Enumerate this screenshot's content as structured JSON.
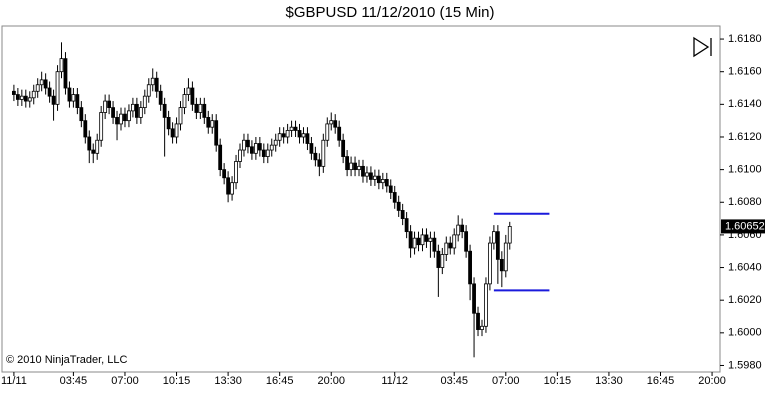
{
  "chart_data": {
    "type": "candlestick",
    "title": "$GBPUSD  11/12/2010 (15 Min)",
    "copyright": "© 2010 NinjaTrader, LLC",
    "x": [
      0,
      0.25,
      0.5,
      0.75,
      1,
      1.25,
      1.5,
      1.75,
      2,
      2.25,
      2.5,
      2.75,
      3,
      3.25,
      3.5,
      3.75,
      4,
      4.25,
      4.5,
      4.75,
      5,
      5.25,
      5.5,
      5.75,
      6,
      6.25,
      6.5,
      6.75,
      7,
      7.25,
      7.5,
      7.75,
      8,
      8.25,
      8.5,
      8.75,
      9,
      9.25,
      9.5,
      9.75,
      10,
      10.25,
      10.5,
      10.75,
      11,
      11.25,
      11.5,
      11.75,
      12,
      12.25,
      12.5,
      12.75,
      13,
      13.25,
      13.5,
      13.75,
      14,
      14.25,
      14.5,
      14.75,
      15,
      15.25,
      15.5,
      15.75,
      16,
      16.25,
      16.5,
      16.75,
      17,
      17.25,
      17.5,
      17.75,
      18,
      18.25,
      18.5,
      18.75,
      19,
      19.25,
      19.5,
      19.75,
      20,
      20.25,
      20.5,
      20.75,
      21,
      21.25,
      21.5,
      21.75,
      22,
      22.25,
      22.5,
      22.75,
      23,
      23.25,
      23.5,
      23.75,
      24,
      24.25,
      24.5,
      24.75,
      25,
      25.25,
      25.5,
      25.75,
      26,
      26.25,
      26.5,
      26.75,
      27,
      27.25,
      27.5,
      27.75,
      28,
      28.25,
      28.5,
      28.75,
      29,
      29.25,
      29.5,
      29.75,
      30,
      30.25,
      30.5,
      30.75,
      31,
      31.25
    ],
    "open": [
      1.6148,
      1.6146,
      1.6143,
      1.6145,
      1.6142,
      1.6144,
      1.6148,
      1.6152,
      1.6155,
      1.615,
      1.6145,
      1.614,
      1.616,
      1.6168,
      1.615,
      1.6142,
      1.6146,
      1.6138,
      1.613,
      1.612,
      1.6112,
      1.611,
      1.6118,
      1.6135,
      1.6142,
      1.6138,
      1.6132,
      1.6128,
      1.6134,
      1.613,
      1.6136,
      1.614,
      1.6132,
      1.6138,
      1.6145,
      1.6152,
      1.6156,
      1.6148,
      1.614,
      1.6132,
      1.6125,
      1.612,
      1.6128,
      1.6138,
      1.6146,
      1.615,
      1.614,
      1.6135,
      1.614,
      1.6132,
      1.6126,
      1.613,
      1.6115,
      1.61,
      1.6095,
      1.6085,
      1.6092,
      1.6105,
      1.6112,
      1.6118,
      1.6114,
      1.611,
      1.6116,
      1.6112,
      1.6108,
      1.6112,
      1.6115,
      1.6118,
      1.6122,
      1.612,
      1.6124,
      1.6126,
      1.6124,
      1.612,
      1.6122,
      1.6116,
      1.611,
      1.6106,
      1.6102,
      1.6118,
      1.6128,
      1.613,
      1.6126,
      1.6118,
      1.6108,
      1.61,
      1.6104,
      1.61,
      1.6102,
      1.6096,
      1.6098,
      1.6094,
      1.6096,
      1.6092,
      1.6094,
      1.609,
      1.6086,
      1.608,
      1.6075,
      1.607,
      1.6062,
      1.6052,
      1.6058,
      1.6054,
      1.606,
      1.6056,
      1.6058,
      1.605,
      1.604,
      1.6048,
      1.6055,
      1.6052,
      1.606,
      1.6066,
      1.6062,
      1.605,
      1.603,
      1.6012,
      1.6002,
      1.6004,
      1.603,
      1.6055,
      1.6062,
      1.6045,
      1.6038,
      1.6055
    ],
    "high": [
      1.6152,
      1.615,
      1.6149,
      1.6149,
      1.6148,
      1.6152,
      1.6156,
      1.616,
      1.6159,
      1.6154,
      1.6149,
      1.6164,
      1.6178,
      1.6172,
      1.6154,
      1.615,
      1.615,
      1.6142,
      1.6134,
      1.6124,
      1.6116,
      1.6122,
      1.6139,
      1.6146,
      1.6146,
      1.6142,
      1.6136,
      1.6138,
      1.6138,
      1.614,
      1.6144,
      1.6144,
      1.6142,
      1.6149,
      1.6156,
      1.6162,
      1.616,
      1.6152,
      1.6144,
      1.6136,
      1.6129,
      1.6132,
      1.6142,
      1.615,
      1.6156,
      1.6154,
      1.6144,
      1.6144,
      1.6144,
      1.6136,
      1.6134,
      1.6134,
      1.6119,
      1.6104,
      1.6099,
      1.6096,
      1.6109,
      1.6116,
      1.6122,
      1.6122,
      1.6118,
      1.612,
      1.612,
      1.6116,
      1.6116,
      1.6119,
      1.6122,
      1.6126,
      1.6126,
      1.6128,
      1.613,
      1.613,
      1.6128,
      1.6126,
      1.6126,
      1.612,
      1.6114,
      1.611,
      1.6122,
      1.6132,
      1.6135,
      1.6134,
      1.613,
      1.6122,
      1.6112,
      1.6108,
      1.6108,
      1.6106,
      1.6106,
      1.6102,
      1.6102,
      1.61,
      1.61,
      1.6098,
      1.6098,
      1.6094,
      1.609,
      1.6084,
      1.6079,
      1.6074,
      1.6066,
      1.6062,
      1.6062,
      1.6064,
      1.6064,
      1.6062,
      1.6062,
      1.6054,
      1.6052,
      1.6059,
      1.6059,
      1.6064,
      1.6072,
      1.607,
      1.6066,
      1.6054,
      1.6034,
      1.6016,
      1.6008,
      1.6034,
      1.6059,
      1.6066,
      1.6066,
      1.605,
      1.606,
      1.6068
    ],
    "low": [
      1.6142,
      1.6139,
      1.6139,
      1.6138,
      1.6138,
      1.614,
      1.6144,
      1.6148,
      1.6146,
      1.6141,
      1.613,
      1.6136,
      1.6156,
      1.6146,
      1.6138,
      1.6138,
      1.6134,
      1.6126,
      1.6116,
      1.6104,
      1.6104,
      1.6106,
      1.6114,
      1.6131,
      1.6134,
      1.6128,
      1.6118,
      1.6124,
      1.6126,
      1.6126,
      1.6132,
      1.6128,
      1.6128,
      1.6134,
      1.6141,
      1.6148,
      1.6144,
      1.6136,
      1.6108,
      1.6121,
      1.6116,
      1.6116,
      1.6124,
      1.6134,
      1.6142,
      1.6136,
      1.6131,
      1.6131,
      1.6128,
      1.6122,
      1.6122,
      1.6111,
      1.6096,
      1.6091,
      1.608,
      1.6081,
      1.6088,
      1.6101,
      1.6108,
      1.611,
      1.6106,
      1.6106,
      1.6108,
      1.6104,
      1.6104,
      1.6108,
      1.6111,
      1.6114,
      1.6116,
      1.6116,
      1.612,
      1.612,
      1.6116,
      1.6116,
      1.6112,
      1.6106,
      1.6102,
      1.6096,
      1.6098,
      1.6114,
      1.6124,
      1.6122,
      1.6114,
      1.6104,
      1.6096,
      1.6096,
      1.6096,
      1.6096,
      1.6092,
      1.6092,
      1.609,
      1.609,
      1.6088,
      1.6088,
      1.6086,
      1.6082,
      1.6076,
      1.6071,
      1.6066,
      1.6058,
      1.6046,
      1.6048,
      1.605,
      1.605,
      1.6052,
      1.6046,
      1.6046,
      1.6022,
      1.6036,
      1.6044,
      1.6048,
      1.6048,
      1.6056,
      1.6058,
      1.6046,
      1.602,
      1.5985,
      1.5998,
      1.5998,
      1.6,
      1.6026,
      1.6051,
      1.603,
      1.6028,
      1.6034,
      1.6051
    ],
    "close": [
      1.6146,
      1.6143,
      1.6145,
      1.6142,
      1.6144,
      1.6148,
      1.6152,
      1.6155,
      1.615,
      1.6145,
      1.614,
      1.616,
      1.6168,
      1.615,
      1.6142,
      1.6146,
      1.6138,
      1.613,
      1.612,
      1.6112,
      1.611,
      1.6118,
      1.6135,
      1.6142,
      1.6138,
      1.6132,
      1.6128,
      1.6134,
      1.613,
      1.6136,
      1.614,
      1.6132,
      1.6138,
      1.6145,
      1.6152,
      1.6156,
      1.6148,
      1.614,
      1.6132,
      1.6125,
      1.612,
      1.6128,
      1.6138,
      1.6146,
      1.615,
      1.614,
      1.6135,
      1.614,
      1.6132,
      1.6126,
      1.613,
      1.6115,
      1.61,
      1.6095,
      1.6085,
      1.6092,
      1.6105,
      1.6112,
      1.6118,
      1.6114,
      1.611,
      1.6116,
      1.6112,
      1.6108,
      1.6112,
      1.6115,
      1.6118,
      1.6122,
      1.612,
      1.6124,
      1.6126,
      1.6124,
      1.612,
      1.6122,
      1.6116,
      1.611,
      1.6106,
      1.6102,
      1.6118,
      1.6128,
      1.613,
      1.6126,
      1.6118,
      1.6108,
      1.61,
      1.6104,
      1.61,
      1.6102,
      1.6096,
      1.6098,
      1.6094,
      1.6096,
      1.6092,
      1.6094,
      1.609,
      1.6086,
      1.608,
      1.6075,
      1.607,
      1.6062,
      1.6052,
      1.6058,
      1.6054,
      1.606,
      1.6056,
      1.6058,
      1.605,
      1.604,
      1.6048,
      1.6055,
      1.6052,
      1.606,
      1.6066,
      1.6062,
      1.605,
      1.603,
      1.6012,
      1.6002,
      1.6004,
      1.603,
      1.6055,
      1.6062,
      1.6045,
      1.6038,
      1.6055,
      1.60652
    ],
    "up_color": "#ffffff",
    "down_color": "#000000",
    "wick_color": "#000000",
    "levels": [
      1.6073,
      1.6026
    ],
    "level_x": [
      30.25,
      33.75
    ],
    "level_color": "#1a1adc",
    "xlim": [
      -0.75,
      44.5
    ],
    "ylim": [
      1.5976,
      1.6188
    ],
    "xticks": [
      {
        "value": 0,
        "label": "11/11"
      },
      {
        "value": 3.75,
        "label": "03:45"
      },
      {
        "value": 7,
        "label": "07:00"
      },
      {
        "value": 10.25,
        "label": "10:15"
      },
      {
        "value": 13.5,
        "label": "13:30"
      },
      {
        "value": 16.75,
        "label": "16:45"
      },
      {
        "value": 20,
        "label": "20:00"
      },
      {
        "value": 24,
        "label": "11/12"
      },
      {
        "value": 27.75,
        "label": "03:45"
      },
      {
        "value": 31,
        "label": "07:00"
      },
      {
        "value": 34.25,
        "label": "10:15"
      },
      {
        "value": 37.5,
        "label": "13:30"
      },
      {
        "value": 40.75,
        "label": "16:45"
      },
      {
        "value": 44,
        "label": "20:00"
      }
    ],
    "yticks": [
      {
        "value": 1.598,
        "label": "1.5980"
      },
      {
        "value": 1.6,
        "label": "1.6000"
      },
      {
        "value": 1.602,
        "label": "1.6020"
      },
      {
        "value": 1.604,
        "label": "1.6040"
      },
      {
        "value": 1.606,
        "label": "1.6060"
      },
      {
        "value": 1.608,
        "label": "1.6080"
      },
      {
        "value": 1.61,
        "label": "1.6100"
      },
      {
        "value": 1.612,
        "label": "1.6120"
      },
      {
        "value": 1.614,
        "label": "1.6140"
      },
      {
        "value": 1.616,
        "label": "1.6160"
      },
      {
        "value": 1.618,
        "label": "1.6180"
      }
    ]
  }
}
